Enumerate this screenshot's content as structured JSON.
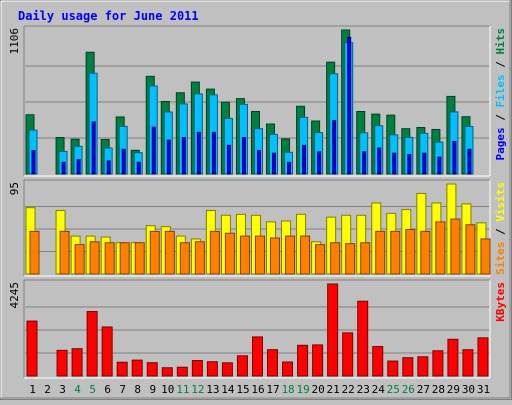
{
  "chart_data": {
    "type": "bar",
    "title": "Daily usage for June 2011",
    "categories": [
      "1",
      "2",
      "3",
      "4",
      "5",
      "6",
      "7",
      "8",
      "9",
      "10",
      "11",
      "12",
      "13",
      "14",
      "15",
      "16",
      "17",
      "18",
      "19",
      "20",
      "21",
      "22",
      "23",
      "24",
      "25",
      "26",
      "27",
      "28",
      "29",
      "30",
      "31"
    ],
    "weekend_days": [
      "4",
      "5",
      "11",
      "12",
      "18",
      "19",
      "25",
      "26"
    ],
    "panels": [
      {
        "id": "hits_files_pages",
        "ymax": 1106,
        "ymax_label": "1106",
        "right_labels": [
          "Pages",
          "Files",
          "Hits"
        ],
        "series": [
          {
            "name": "Hits",
            "color": "#008040",
            "values": [
              455,
              0,
              280,
              267,
              935,
              265,
              438,
              182,
              750,
              557,
              624,
              706,
              652,
              552,
              579,
              480,
              384,
              269,
              520,
              407,
              859,
              1106,
              480,
              460,
              452,
              348,
              357,
              342,
              596,
              440,
              0
            ]
          },
          {
            "name": "Files",
            "color": "#00c0ff",
            "values": [
              337,
              0,
              173,
              213,
              774,
              200,
              365,
              164,
              676,
              476,
              538,
              615,
              608,
              427,
              535,
              348,
              304,
              167,
              435,
              318,
              770,
              1009,
              316,
              371,
              301,
              281,
              312,
              245,
              477,
              365,
              0
            ]
          },
          {
            "name": "Pages",
            "color": "#0000ff",
            "values": [
              180,
              0,
              90,
              110,
              400,
              100,
              190,
              90,
              360,
              260,
              280,
              320,
              320,
              220,
              280,
              180,
              160,
              90,
              220,
              170,
              410,
              1050,
              170,
              200,
              160,
              150,
              160,
              130,
              250,
              190,
              0
            ]
          }
        ]
      },
      {
        "id": "visits_sites",
        "ymax": 95,
        "ymax_label": "95",
        "right_labels": [
          "Sites",
          "Visits"
        ],
        "series": [
          {
            "name": "Visits",
            "color": "#ffff00",
            "values": [
              70,
              0,
              67,
              40,
              40,
              39,
              33,
              33,
              51,
              50,
              40,
              37,
              67,
              62,
              63,
              62,
              55,
              56,
              63,
              34,
              60,
              62,
              62,
              75,
              64,
              68,
              85,
              75,
              95,
              74,
              54
            ]
          },
          {
            "name": "Sites",
            "color": "#ff8000",
            "values": [
              45,
              0,
              45,
              31,
              34,
              33,
              33,
              33,
              45,
              45,
              33,
              34,
              45,
              43,
              40,
              40,
              38,
              40,
              40,
              31,
              33,
              32,
              33,
              45,
              45,
              47,
              45,
              55,
              58,
              52,
              37
            ]
          }
        ]
      },
      {
        "id": "kbytes",
        "ymax": 4245,
        "ymax_label": "4245",
        "right_labels": [
          "KBytes"
        ],
        "series": [
          {
            "name": "KBytes",
            "color": "#ff0000",
            "values": [
              2536,
              0,
              1184,
              1260,
              2976,
              2262,
              636,
              733,
              616,
              382,
              404,
              714,
              659,
              608,
              932,
              1803,
              1216,
              646,
              1417,
              1435,
              4245,
              1992,
              3450,
              1359,
              689,
              845,
              887,
              1165,
              1694,
              1213,
              1760
            ]
          }
        ]
      }
    ]
  },
  "colors": {
    "background": "#c0c0c0",
    "title": "#0000ff",
    "grid": "#808080",
    "weekday_label": "#000000",
    "weekend_label": "#008040"
  }
}
